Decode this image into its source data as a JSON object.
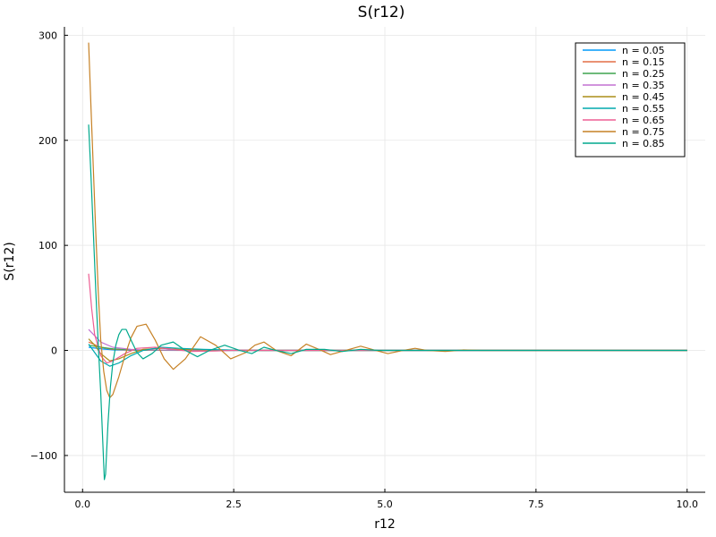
{
  "chart_data": {
    "type": "line",
    "title": "S(r12)",
    "xlabel": "r12",
    "ylabel": "S(r12)",
    "xlim": [
      -0.3,
      10.3
    ],
    "ylim": [
      -135,
      308
    ],
    "xticks": [
      0,
      2.5,
      5,
      7.5,
      10
    ],
    "xtick_labels": [
      "0.0",
      "2.5",
      "5.0",
      "7.5",
      "10.0"
    ],
    "yticks": [
      -100,
      0,
      100,
      200,
      300
    ],
    "ytick_labels": [
      "−100",
      "0",
      "100",
      "200",
      "300"
    ],
    "grid": true,
    "legend_position": "top-right",
    "series": [
      {
        "name": "n = 0.05",
        "color": "#009AFA",
        "x": [
          0.1,
          0.3,
          0.5,
          0.8,
          1.2,
          2.0,
          3.0,
          4.0,
          6.0,
          10.0
        ],
        "y": [
          3,
          1.5,
          0.5,
          0.2,
          0.1,
          0,
          0,
          0,
          0,
          0
        ]
      },
      {
        "name": "n = 0.15",
        "color": "#E36F47",
        "x": [
          0.1,
          0.3,
          0.5,
          0.8,
          1.2,
          2.0,
          3.0,
          4.0,
          6.0,
          10.0
        ],
        "y": [
          8,
          3,
          1,
          0.3,
          0.1,
          0,
          0,
          0,
          0,
          0
        ]
      },
      {
        "name": "n = 0.25",
        "color": "#3EA44E",
        "x": [
          0.1,
          0.3,
          0.5,
          0.8,
          1.2,
          2.0,
          3.0,
          4.0,
          6.0,
          10.0
        ],
        "y": [
          5,
          3,
          1.5,
          0.5,
          0.2,
          0,
          0,
          0,
          0,
          0
        ]
      },
      {
        "name": "n = 0.35",
        "color": "#C271D2",
        "x": [
          0.1,
          0.3,
          0.5,
          0.8,
          1.0,
          1.5,
          2.0,
          3.0,
          4.0,
          6.0,
          10.0
        ],
        "y": [
          20,
          8,
          3,
          1,
          0.5,
          0.3,
          0.1,
          0,
          0,
          0,
          0
        ]
      },
      {
        "name": "n = 0.45",
        "color": "#AC8D18",
        "x": [
          0.1,
          0.2,
          0.3,
          0.45,
          0.6,
          0.8,
          1.0,
          1.3,
          1.6,
          2.0,
          2.5,
          3.0,
          4.0,
          6.0,
          10.0
        ],
        "y": [
          11,
          5,
          -3,
          -10,
          -8,
          -3,
          1,
          2,
          1,
          0.5,
          0.2,
          0,
          0,
          0,
          0
        ]
      },
      {
        "name": "n = 0.55",
        "color": "#00A9AD",
        "x": [
          0.1,
          0.2,
          0.3,
          0.45,
          0.6,
          0.8,
          1.0,
          1.3,
          1.6,
          2.0,
          2.5,
          3.0,
          4.0,
          6.0,
          10.0
        ],
        "y": [
          6,
          -2,
          -10,
          -15,
          -12,
          -5,
          0,
          3,
          2,
          1,
          0.3,
          0,
          0,
          0,
          0
        ]
      },
      {
        "name": "n = 0.65",
        "color": "#ED5E93",
        "x": [
          0.1,
          0.15,
          0.2,
          0.3,
          0.4,
          0.5,
          0.7,
          0.9,
          1.2,
          1.5,
          1.8,
          2.2,
          2.6,
          3.0,
          4.0,
          6.0,
          10.0
        ],
        "y": [
          73,
          40,
          15,
          -5,
          -12,
          -10,
          -3,
          2,
          3,
          1,
          -1,
          -0.5,
          0.3,
          0,
          0,
          0,
          0
        ]
      },
      {
        "name": "n = 0.75",
        "color": "#C68125",
        "x": [
          0.1,
          0.14,
          0.18,
          0.22,
          0.26,
          0.3,
          0.35,
          0.4,
          0.45,
          0.5,
          0.6,
          0.7,
          0.8,
          0.9,
          1.05,
          1.2,
          1.35,
          1.5,
          1.7,
          1.95,
          2.2,
          2.45,
          2.7,
          2.85,
          3.0,
          3.2,
          3.45,
          3.7,
          3.95,
          4.1,
          4.35,
          4.6,
          4.85,
          5.05,
          5.3,
          5.5,
          5.7,
          6.0,
          6.3,
          6.6,
          7.0,
          8.0,
          10.0
        ],
        "y": [
          293,
          230,
          170,
          110,
          55,
          10,
          -20,
          -38,
          -45,
          -42,
          -25,
          -5,
          12,
          23,
          25,
          10,
          -8,
          -18,
          -8,
          13,
          5,
          -8,
          -2,
          5,
          8,
          0,
          -5,
          6,
          0,
          -4,
          0,
          4,
          0,
          -3,
          0,
          2,
          0,
          -1,
          0.5,
          0,
          0,
          0,
          0
        ]
      },
      {
        "name": "n = 0.85",
        "color": "#00A98D",
        "x": [
          0.1,
          0.14,
          0.18,
          0.22,
          0.26,
          0.3,
          0.34,
          0.36,
          0.38,
          0.42,
          0.46,
          0.5,
          0.55,
          0.6,
          0.65,
          0.72,
          0.8,
          0.9,
          1.0,
          1.15,
          1.3,
          1.5,
          1.7,
          1.9,
          2.1,
          2.35,
          2.6,
          2.8,
          3.0,
          3.2,
          3.45,
          3.7,
          4.0,
          4.3,
          4.6,
          4.9,
          5.2,
          5.6,
          6.0,
          7.0,
          10.0
        ],
        "y": [
          215,
          165,
          110,
          55,
          5,
          -40,
          -95,
          -123,
          -118,
          -70,
          -35,
          -12,
          5,
          15,
          20,
          20,
          10,
          -2,
          -8,
          -3,
          5,
          8,
          0,
          -6,
          0,
          5,
          0,
          -3,
          3,
          0,
          -3,
          1,
          1,
          -1,
          1,
          0,
          0,
          0,
          0,
          0,
          0
        ]
      }
    ]
  }
}
